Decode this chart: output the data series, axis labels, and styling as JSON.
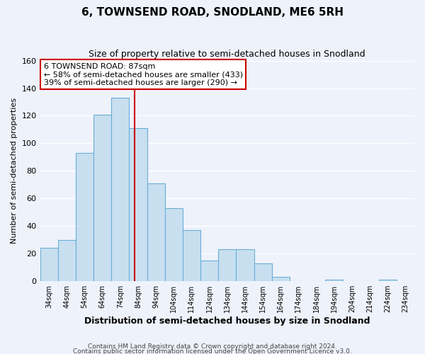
{
  "title": "6, TOWNSEND ROAD, SNODLAND, ME6 5RH",
  "subtitle": "Size of property relative to semi-detached houses in Snodland",
  "xlabel": "Distribution of semi-detached houses by size in Snodland",
  "ylabel": "Number of semi-detached properties",
  "bins": [
    "34sqm",
    "44sqm",
    "54sqm",
    "64sqm",
    "74sqm",
    "84sqm",
    "94sqm",
    "104sqm",
    "114sqm",
    "124sqm",
    "134sqm",
    "144sqm",
    "154sqm",
    "164sqm",
    "174sqm",
    "184sqm",
    "194sqm",
    "204sqm",
    "214sqm",
    "224sqm",
    "234sqm"
  ],
  "counts": [
    24,
    30,
    93,
    121,
    133,
    111,
    71,
    53,
    37,
    15,
    23,
    23,
    13,
    3,
    0,
    0,
    1,
    0,
    0,
    1
  ],
  "bar_color": "#c8dff0",
  "bar_edge_color": "#6baed6",
  "vline_color": "#cc0000",
  "annotation_title": "6 TOWNSEND ROAD: 87sqm",
  "annotation_line1": "← 58% of semi-detached houses are smaller (433)",
  "annotation_line2": "39% of semi-detached houses are larger (290) →",
  "annotation_box_color": "#ffffff",
  "annotation_box_edge": "#cc0000",
  "footer1": "Contains HM Land Registry data © Crown copyright and database right 2024.",
  "footer2": "Contains public sector information licensed under the Open Government Licence v3.0.",
  "ylim": [
    0,
    160
  ],
  "background_color": "#eef2fb"
}
